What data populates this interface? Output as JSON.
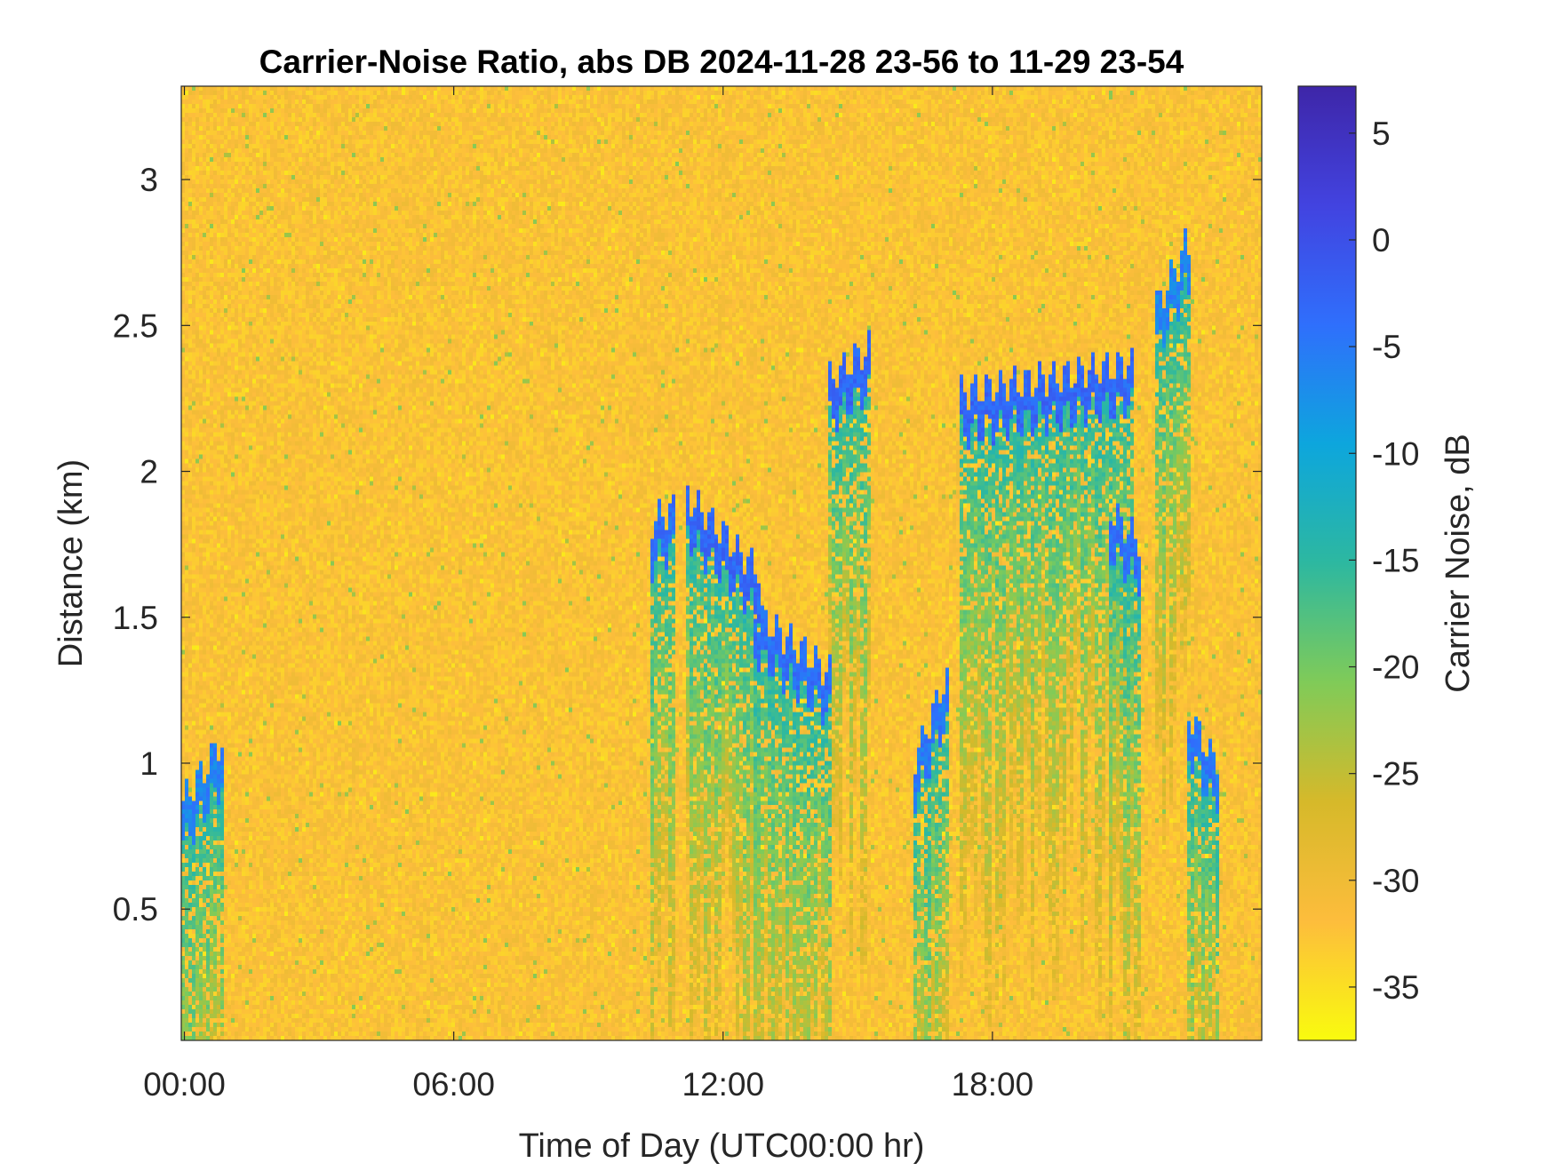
{
  "chart_data": {
    "type": "heatmap",
    "title": "Carrier-Noise Ratio, abs DB 2024-11-28 23-56 to 11-29 23-54",
    "xlabel": "Time of Day (UTC00:00 hr)",
    "ylabel": "Distance (km)",
    "colorbar_label": "Carrier Noise, dB",
    "x_unit": "hours of day",
    "xlim": [
      -0.07,
      24.0
    ],
    "ylim": [
      0.05,
      3.32
    ],
    "clim": [
      -37.5,
      7.2
    ],
    "x_ticks": [
      {
        "value": 0,
        "label": "00:00"
      },
      {
        "value": 6,
        "label": "06:00"
      },
      {
        "value": 12,
        "label": "12:00"
      },
      {
        "value": 18,
        "label": "18:00"
      }
    ],
    "y_ticks": [
      {
        "value": 0.5,
        "label": "0.5"
      },
      {
        "value": 1,
        "label": "1"
      },
      {
        "value": 1.5,
        "label": "1.5"
      },
      {
        "value": 2,
        "label": "2"
      },
      {
        "value": 2.5,
        "label": "2.5"
      },
      {
        "value": 3,
        "label": "3"
      }
    ],
    "colorbar_ticks": [
      {
        "value": 5,
        "label": "5"
      },
      {
        "value": 0,
        "label": "0"
      },
      {
        "value": -5,
        "label": "-5"
      },
      {
        "value": -10,
        "label": "-10"
      },
      {
        "value": -15,
        "label": "-15"
      },
      {
        "value": -20,
        "label": "-20"
      },
      {
        "value": -25,
        "label": "-25"
      },
      {
        "value": -30,
        "label": "-30"
      },
      {
        "value": -35,
        "label": "-35"
      }
    ],
    "colormap": [
      "#f9fb0e",
      "#fdbd3c",
      "#d6b92a",
      "#80cb58",
      "#2db8a0",
      "#0da6dd",
      "#2f6ffc",
      "#4243e0",
      "#3e26a8"
    ],
    "background_level_db": -32,
    "echo_features": [
      {
        "t_start": 0.0,
        "t_end": 0.8,
        "z_start": 0.8,
        "z_end": 1.0,
        "peak_db": -4
      },
      {
        "t_start": 10.4,
        "t_end": 10.8,
        "z_start": 1.75,
        "z_end": 1.8,
        "peak_db": -2
      },
      {
        "t_start": 11.2,
        "t_end": 12.7,
        "z_start": 1.85,
        "z_end": 1.6,
        "peak_db": -1
      },
      {
        "t_start": 12.7,
        "t_end": 14.3,
        "z_start": 1.45,
        "z_end": 1.25,
        "peak_db": -2
      },
      {
        "t_start": 14.4,
        "t_end": 15.2,
        "z_start": 2.25,
        "z_end": 2.35,
        "peak_db": -1
      },
      {
        "t_start": 16.3,
        "t_end": 16.9,
        "z_start": 0.95,
        "z_end": 1.2,
        "peak_db": -3
      },
      {
        "t_start": 17.3,
        "t_end": 21.0,
        "z_start": 2.2,
        "z_end": 2.3,
        "peak_db": -1
      },
      {
        "t_start": 20.6,
        "t_end": 21.2,
        "z_start": 1.8,
        "z_end": 1.7,
        "peak_db": -2
      },
      {
        "t_start": 21.7,
        "t_end": 22.3,
        "z_start": 2.5,
        "z_end": 2.7,
        "peak_db": -4
      },
      {
        "t_start": 22.4,
        "t_end": 22.9,
        "z_start": 1.1,
        "z_end": 0.95,
        "peak_db": -3
      }
    ]
  }
}
